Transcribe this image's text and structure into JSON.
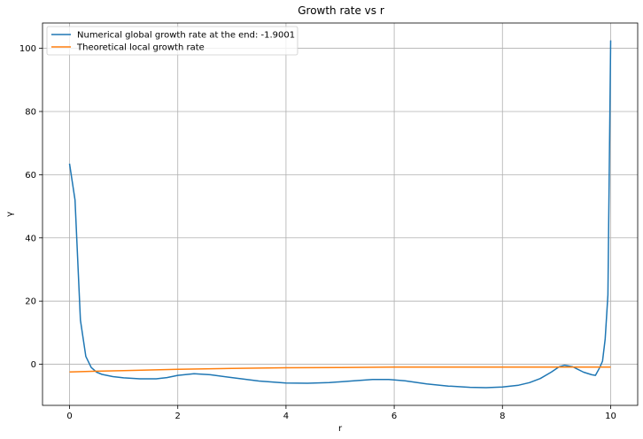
{
  "chart_data": {
    "type": "line",
    "title": "Growth rate vs r",
    "xlabel": "r",
    "ylabel": "γ",
    "xlim": [
      -0.5,
      10.5
    ],
    "ylim": [
      -13,
      108
    ],
    "xticks": [
      0,
      2,
      4,
      6,
      8,
      10
    ],
    "yticks": [
      0,
      20,
      40,
      60,
      80,
      100
    ],
    "grid": true,
    "legend_position": "top-left",
    "series": [
      {
        "name": "Numerical global growth rate at the end: -1.9001",
        "color": "#1f77b4",
        "points": [
          [
            0,
            63.5
          ],
          [
            0.1,
            52
          ],
          [
            0.2,
            14
          ],
          [
            0.3,
            2.5
          ],
          [
            0.4,
            -1
          ],
          [
            0.5,
            -2.5
          ],
          [
            0.6,
            -3.2
          ],
          [
            0.8,
            -3.9
          ],
          [
            1.0,
            -4.3
          ],
          [
            1.3,
            -4.6
          ],
          [
            1.6,
            -4.6
          ],
          [
            1.8,
            -4.2
          ],
          [
            2.0,
            -3.5
          ],
          [
            2.3,
            -3.0
          ],
          [
            2.6,
            -3.3
          ],
          [
            3.0,
            -4.2
          ],
          [
            3.5,
            -5.3
          ],
          [
            4.0,
            -5.9
          ],
          [
            4.4,
            -6.0
          ],
          [
            4.8,
            -5.8
          ],
          [
            5.2,
            -5.3
          ],
          [
            5.6,
            -4.8
          ],
          [
            5.9,
            -4.8
          ],
          [
            6.2,
            -5.2
          ],
          [
            6.6,
            -6.2
          ],
          [
            7.0,
            -6.9
          ],
          [
            7.4,
            -7.3
          ],
          [
            7.7,
            -7.4
          ],
          [
            8.0,
            -7.2
          ],
          [
            8.3,
            -6.6
          ],
          [
            8.5,
            -5.8
          ],
          [
            8.7,
            -4.5
          ],
          [
            8.9,
            -2.5
          ],
          [
            9.05,
            -0.8
          ],
          [
            9.15,
            -0.3
          ],
          [
            9.3,
            -0.8
          ],
          [
            9.5,
            -2.5
          ],
          [
            9.65,
            -3.3
          ],
          [
            9.72,
            -3.5
          ],
          [
            9.8,
            -1
          ],
          [
            9.85,
            1
          ],
          [
            9.9,
            8
          ],
          [
            9.95,
            22
          ],
          [
            10.0,
            102.5
          ]
        ]
      },
      {
        "name": "Theoretical local growth rate",
        "color": "#ff7f0e",
        "points": [
          [
            0,
            -2.4
          ],
          [
            0.5,
            -2.2
          ],
          [
            1.0,
            -2.0
          ],
          [
            2.0,
            -1.6
          ],
          [
            3.0,
            -1.3
          ],
          [
            4.0,
            -1.1
          ],
          [
            5.0,
            -1.0
          ],
          [
            6.0,
            -0.9
          ],
          [
            7.0,
            -0.9
          ],
          [
            8.0,
            -0.9
          ],
          [
            9.0,
            -0.9
          ],
          [
            10.0,
            -0.9
          ]
        ]
      }
    ]
  }
}
